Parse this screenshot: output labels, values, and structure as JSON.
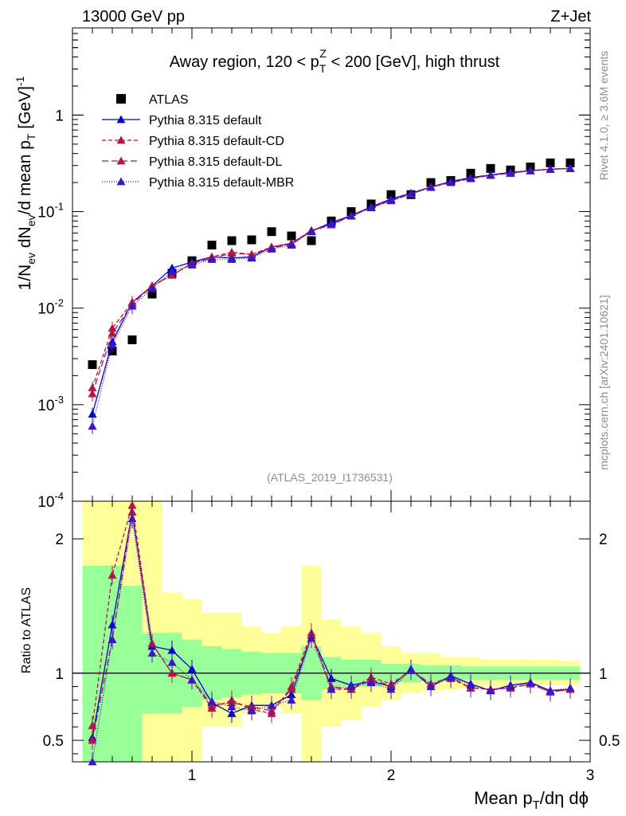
{
  "header": {
    "left": "13000 GeV pp",
    "right": "Z+Jet"
  },
  "side": {
    "rivet": "Rivet 4.1.0, ≥ 3.6M events",
    "mcplots": "mcplots.cern.ch [arXiv:2401.10621]"
  },
  "chart_data": [
    {
      "type": "scatter",
      "name": "main",
      "title": "Away region, 120 < p_T^Z < 200 [GeV], high thrust",
      "title_parts": {
        "pre": "Away region, 120 < p",
        "sup": "Z",
        "sub": "T",
        "post": " < 200 [GeV], high thrust"
      },
      "ylabel": "1/N_ev dN_ev/d mean p_T [GeV]^-1",
      "ylabel_parts": {
        "a": "1/N",
        "a_sub": "ev",
        "b": " dN",
        "b_sub": "ev",
        "c": "/d mean p",
        "c_sub": "T",
        "d": " [GeV]",
        "d_sup": "-1"
      },
      "yscale": "log",
      "ylim": [
        0.0001,
        8
      ],
      "yticks": [
        {
          "value": 0.0001,
          "base": "10",
          "exp": "-4"
        },
        {
          "value": 0.001,
          "base": "10",
          "exp": "-3"
        },
        {
          "value": 0.01,
          "base": "10",
          "exp": "-2"
        },
        {
          "value": 0.1,
          "base": "10",
          "exp": "-1"
        },
        {
          "value": 1,
          "base": "1",
          "exp": ""
        }
      ],
      "xlim": [
        0.4,
        3.0
      ],
      "watermark": "(ATLAS_2019_I1736531)",
      "x": [
        0.5,
        0.6,
        0.7,
        0.8,
        0.9,
        1.0,
        1.1,
        1.2,
        1.3,
        1.4,
        1.5,
        1.6,
        1.7,
        1.8,
        1.9,
        2.0,
        2.1,
        2.2,
        2.3,
        2.4,
        2.5,
        2.6,
        2.7,
        2.8,
        2.9
      ],
      "series": [
        {
          "name": "ATLAS",
          "marker": "square",
          "color": "#000000",
          "values": [
            0.0026,
            0.0036,
            0.0047,
            0.014,
            0.023,
            0.031,
            0.045,
            0.05,
            0.051,
            0.062,
            0.056,
            0.05,
            0.08,
            0.1,
            0.12,
            0.15,
            0.15,
            0.2,
            0.21,
            0.25,
            0.28,
            0.27,
            0.29,
            0.32,
            0.32
          ]
        },
        {
          "name": "Pythia 8.315 default",
          "marker": "triangle",
          "color": "#0000cc",
          "dash": "",
          "values": [
            0.0008,
            0.0045,
            0.0115,
            0.017,
            0.026,
            0.03,
            0.034,
            0.033,
            0.034,
            0.043,
            0.047,
            0.063,
            0.077,
            0.091,
            0.112,
            0.135,
            0.155,
            0.18,
            0.205,
            0.225,
            0.24,
            0.255,
            0.265,
            0.275,
            0.28
          ]
        },
        {
          "name": "Pythia 8.315 default-CD",
          "marker": "triangle",
          "color": "#b2174a",
          "dash": "5,3",
          "values": [
            0.0015,
            0.0062,
            0.0115,
            0.017,
            0.022,
            0.029,
            0.034,
            0.038,
            0.036,
            0.043,
            0.047,
            0.064,
            0.074,
            0.09,
            0.11,
            0.13,
            0.152,
            0.18,
            0.2,
            0.22,
            0.238,
            0.25,
            0.265,
            0.275,
            0.28
          ]
        },
        {
          "name": "Pythia 8.315 default-DL",
          "marker": "triangle",
          "color": "#b2174a",
          "dash": "8,4",
          "values": [
            0.0013,
            0.0055,
            0.011,
            0.017,
            0.022,
            0.029,
            0.033,
            0.037,
            0.036,
            0.042,
            0.046,
            0.063,
            0.073,
            0.09,
            0.11,
            0.13,
            0.152,
            0.18,
            0.2,
            0.22,
            0.238,
            0.25,
            0.265,
            0.275,
            0.28
          ]
        },
        {
          "name": "Pythia 8.315 default-MBR",
          "marker": "triangle",
          "color": "#3a16c8",
          "dash": "1,2",
          "values": [
            0.0006,
            0.0042,
            0.0105,
            0.016,
            0.024,
            0.028,
            0.032,
            0.032,
            0.033,
            0.041,
            0.045,
            0.062,
            0.075,
            0.09,
            0.11,
            0.13,
            0.152,
            0.178,
            0.2,
            0.22,
            0.238,
            0.25,
            0.265,
            0.275,
            0.28
          ]
        }
      ]
    },
    {
      "type": "line",
      "name": "ratio",
      "ylabel": "Ratio to ATLAS",
      "ylim": [
        0.34,
        2.28
      ],
      "yticks": [
        0.5,
        1,
        2
      ],
      "ytick_labels": [
        "0.5",
        "1",
        "2"
      ],
      "xlim": [
        0.4,
        3.0
      ],
      "xticks": [
        1,
        2,
        3
      ],
      "xtick_labels": [
        "1",
        "2",
        "3"
      ],
      "xlabel": "Mean p_T/dη dϕ",
      "xlabel_parts": {
        "a": "Mean p",
        "sub": "T",
        "b": "/dη dϕ"
      },
      "bands": {
        "x_edges": [
          0.45,
          0.55,
          0.65,
          0.75,
          0.85,
          0.95,
          1.05,
          1.15,
          1.25,
          1.35,
          1.45,
          1.55,
          1.65,
          1.75,
          1.85,
          1.95,
          2.05,
          2.15,
          2.25,
          2.35,
          2.45,
          2.55,
          2.65,
          2.75,
          2.85,
          2.95
        ],
        "yellow": [
          [
            0.1,
            2.3
          ],
          [
            0.1,
            2.3
          ],
          [
            0.1,
            2.3
          ],
          [
            0.1,
            2.3
          ],
          [
            0.3,
            1.6
          ],
          [
            0.3,
            1.55
          ],
          [
            0.6,
            1.45
          ],
          [
            0.6,
            1.45
          ],
          [
            0.7,
            1.35
          ],
          [
            0.75,
            1.3
          ],
          [
            0.7,
            1.35
          ],
          [
            0.3,
            1.8
          ],
          [
            0.6,
            1.4
          ],
          [
            0.65,
            1.35
          ],
          [
            0.75,
            1.3
          ],
          [
            0.8,
            1.2
          ],
          [
            0.85,
            1.15
          ],
          [
            0.87,
            1.15
          ],
          [
            0.88,
            1.12
          ],
          [
            0.89,
            1.12
          ],
          [
            0.9,
            1.1
          ],
          [
            0.9,
            1.1
          ],
          [
            0.9,
            1.1
          ],
          [
            0.91,
            1.1
          ],
          [
            0.91,
            1.09
          ]
        ],
        "green": [
          [
            0.2,
            1.8
          ],
          [
            0.2,
            1.8
          ],
          [
            0.3,
            1.65
          ],
          [
            0.7,
            1.3
          ],
          [
            0.7,
            1.3
          ],
          [
            0.75,
            1.25
          ],
          [
            0.8,
            1.2
          ],
          [
            0.82,
            1.18
          ],
          [
            0.84,
            1.16
          ],
          [
            0.85,
            1.15
          ],
          [
            0.85,
            1.15
          ],
          [
            0.8,
            1.2
          ],
          [
            0.88,
            1.12
          ],
          [
            0.9,
            1.1
          ],
          [
            0.9,
            1.1
          ],
          [
            0.93,
            1.07
          ],
          [
            0.93,
            1.07
          ],
          [
            0.94,
            1.06
          ],
          [
            0.94,
            1.06
          ],
          [
            0.95,
            1.05
          ],
          [
            0.95,
            1.05
          ],
          [
            0.95,
            1.05
          ],
          [
            0.95,
            1.05
          ],
          [
            0.95,
            1.05
          ],
          [
            0.95,
            1.05
          ]
        ]
      },
      "x": [
        0.5,
        0.6,
        0.7,
        0.8,
        0.9,
        1.0,
        1.1,
        1.2,
        1.3,
        1.4,
        1.5,
        1.6,
        1.7,
        1.8,
        1.9,
        2.0,
        2.1,
        2.2,
        2.3,
        2.4,
        2.5,
        2.6,
        2.7,
        2.8,
        2.9
      ],
      "series": [
        {
          "name": "Pythia 8.315 default",
          "color": "#0000cc",
          "dash": "",
          "values": [
            0.52,
            1.36,
            2.2,
            1.2,
            1.17,
            1.03,
            0.78,
            0.7,
            0.76,
            0.76,
            0.84,
            1.28,
            0.96,
            0.91,
            0.94,
            0.9,
            1.03,
            0.9,
            0.98,
            0.92,
            0.87,
            0.91,
            0.93,
            0.87,
            0.88
          ]
        },
        {
          "name": "Pythia 8.315 default-CD",
          "color": "#b2174a",
          "dash": "5,3",
          "values": [
            0.61,
            1.73,
            2.25,
            1.22,
            1.0,
            0.95,
            0.74,
            0.8,
            0.73,
            0.7,
            0.9,
            1.3,
            0.88,
            0.88,
            0.97,
            0.92,
            1.02,
            0.92,
            0.96,
            0.89,
            0.88,
            0.89,
            0.92,
            0.86,
            0.88
          ]
        },
        {
          "name": "Pythia 8.315 default-DL",
          "color": "#b2174a",
          "dash": "8,4",
          "values": [
            0.5,
            1.25,
            2.2,
            1.22,
            1.0,
            0.95,
            0.76,
            0.78,
            0.75,
            0.72,
            0.88,
            1.28,
            0.9,
            0.88,
            0.95,
            0.91,
            1.02,
            0.92,
            0.97,
            0.89,
            0.88,
            0.89,
            0.92,
            0.86,
            0.88
          ]
        },
        {
          "name": "Pythia 8.315 default-MBR",
          "color": "#3a16c8",
          "dash": "1,2",
          "values": [
            0.34,
            1.25,
            2.15,
            1.15,
            1.08,
            0.95,
            0.79,
            0.75,
            0.72,
            0.76,
            0.8,
            1.26,
            0.88,
            0.9,
            0.93,
            0.88,
            1.02,
            0.9,
            0.97,
            0.91,
            0.87,
            0.9,
            0.93,
            0.87,
            0.89
          ]
        }
      ]
    }
  ]
}
